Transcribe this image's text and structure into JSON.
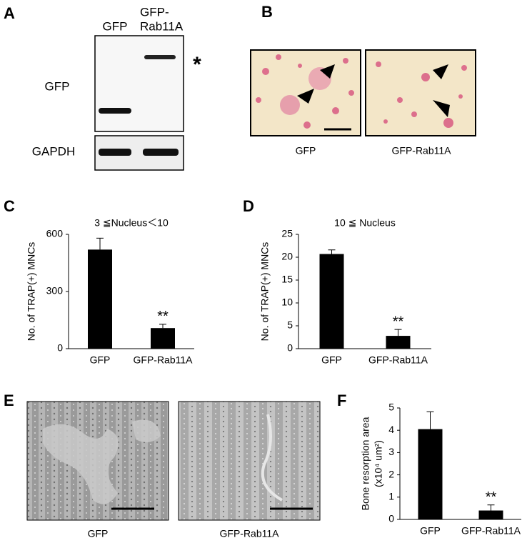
{
  "panel_labels": [
    "A",
    "B",
    "C",
    "D",
    "E",
    "F"
  ],
  "blot": {
    "lanes": [
      [
        "GFP"
      ],
      [
        "GFP-",
        "Rab11A"
      ]
    ],
    "rows": [
      "GFP",
      "GAPDH"
    ],
    "marker": "*"
  },
  "micrographs": {
    "labels": [
      "GFP",
      "GFP-Rab11A"
    ]
  },
  "sem": {
    "labels": [
      "GFP",
      "GFP-Rab11A"
    ]
  },
  "chart_data": [
    {
      "type": "bar",
      "title": "3 ≦Nucleus＜10",
      "ylabel": "No. of TRAP(+) MNCs",
      "categories": [
        "GFP",
        "GFP-Rab11A"
      ],
      "values": [
        520,
        108
      ],
      "errors": [
        60,
        20
      ],
      "significance": [
        null,
        "**"
      ],
      "color": "#000000",
      "ylim": [
        0,
        600
      ],
      "yticks": [
        0,
        300,
        600
      ]
    },
    {
      "type": "bar",
      "title": "10 ≦ Nucleus",
      "ylabel": "No. of TRAP(+) MNCs",
      "categories": [
        "GFP",
        "GFP-Rab11A"
      ],
      "values": [
        20.7,
        2.8
      ],
      "errors": [
        0.9,
        1.4
      ],
      "significance": [
        null,
        "**"
      ],
      "color": "#000000",
      "ylim": [
        0,
        25
      ],
      "yticks": [
        0,
        5,
        10,
        15,
        20,
        25
      ]
    },
    {
      "type": "bar",
      "ylabel": [
        "Bone resorption area",
        "(x10⁴ um²)"
      ],
      "categories": [
        "GFP",
        "GFP-Rab11A"
      ],
      "values": [
        4.05,
        0.4
      ],
      "errors": [
        0.78,
        0.25
      ],
      "significance": [
        null,
        "**"
      ],
      "color": "#000000",
      "ylim": [
        0,
        5
      ],
      "yticks": [
        0,
        1,
        2,
        3,
        4,
        5
      ]
    }
  ]
}
